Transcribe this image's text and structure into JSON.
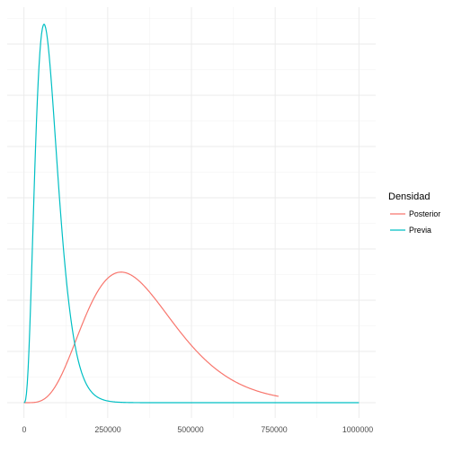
{
  "chart_data": {
    "type": "line",
    "title": "",
    "xlabel": "",
    "ylabel": "",
    "xlim": [
      -50000,
      1050000
    ],
    "ylim": [
      0,
      1
    ],
    "grid": true,
    "x_ticks": [
      0,
      250000,
      500000,
      750000,
      1000000
    ],
    "x_tick_labels": [
      "0",
      "250000",
      "500000",
      "750000",
      "1000000"
    ],
    "y_tick_labels_shown": false,
    "legend": {
      "title": "Densidad",
      "placement": "right"
    },
    "series": [
      {
        "name": "Posterior",
        "color": "#F8766D",
        "shape": "gamma",
        "mode": 290000,
        "peak_relative": 0.345,
        "x_range": [
          0,
          760000
        ]
      },
      {
        "name": "Previa",
        "color": "#00BFC4",
        "shape": "gamma",
        "mode": 60000,
        "peak_relative": 1.0,
        "x_range": [
          0,
          1000000
        ]
      }
    ]
  }
}
